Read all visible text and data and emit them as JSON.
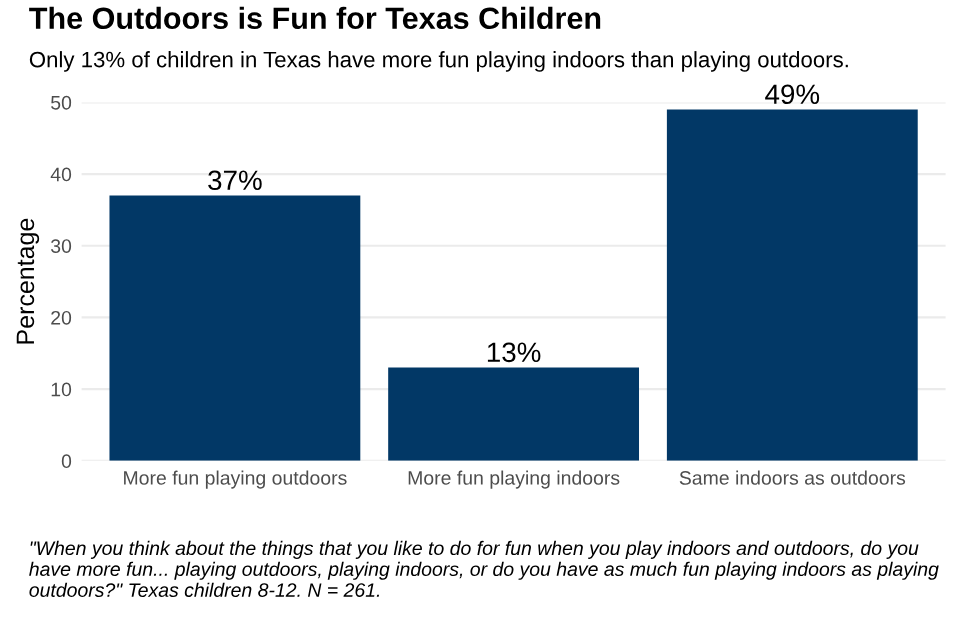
{
  "chart_data": {
    "type": "bar",
    "title": "The Outdoors is Fun for Texas Children",
    "subtitle": "Only 13% of children in Texas have more fun playing indoors than playing outdoors.",
    "ylabel": "Percentage",
    "categories": [
      "More fun playing outdoors",
      "More fun playing indoors",
      "Same indoors as outdoors"
    ],
    "values": [
      37,
      13,
      49
    ],
    "value_labels": [
      "37%",
      "13%",
      "49%"
    ],
    "color": "#023866",
    "ylim": [
      0,
      50
    ],
    "yticks": [
      0,
      10,
      20,
      30,
      40,
      50
    ],
    "grid": "y",
    "annotations": [
      "\"When you think about the things that you like to do for fun when you play indoors and outdoors, do you have more fun... playing outdoors, playing indoors, or do you have as much fun playing indoors as playing outdoors?\" Texas children 8-12. N = 261."
    ]
  }
}
